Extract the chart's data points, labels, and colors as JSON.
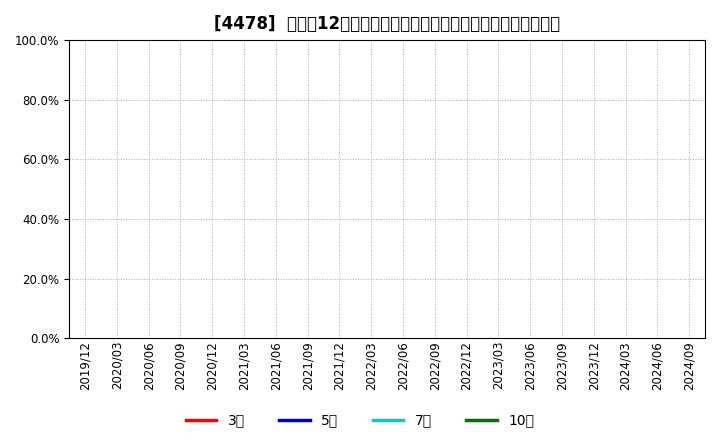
{
  "title": "[4478]  売上高12か月移動合計の対前年同期増減率の平均値の推移",
  "ytick_values": [
    0.0,
    0.2,
    0.4,
    0.6,
    0.8,
    1.0
  ],
  "ylim": [
    0.0,
    1.0
  ],
  "x_tick_labels": [
    "2019/12",
    "2020/03",
    "2020/06",
    "2020/09",
    "2020/12",
    "2021/03",
    "2021/06",
    "2021/09",
    "2021/12",
    "2022/03",
    "2022/06",
    "2022/09",
    "2022/12",
    "2023/03",
    "2023/06",
    "2023/09",
    "2023/12",
    "2024/03",
    "2024/06",
    "2024/09"
  ],
  "legend_entries": [
    {
      "label": "3年",
      "color": "#FF0000"
    },
    {
      "label": "5年",
      "color": "#0000CC"
    },
    {
      "label": "7年",
      "color": "#00CCCC"
    },
    {
      "label": "10年",
      "color": "#007700"
    }
  ],
  "background_color": "#ffffff",
  "plot_bg_color": "#ffffff",
  "grid_color": "#aaaaaa",
  "title_fontsize": 12,
  "tick_fontsize": 8.5,
  "legend_fontsize": 10
}
